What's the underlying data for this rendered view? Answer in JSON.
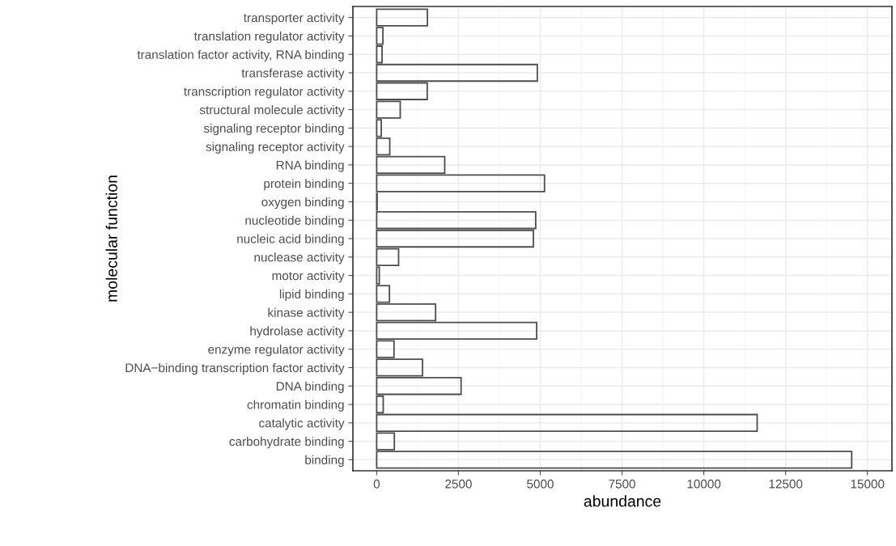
{
  "chart_data": {
    "type": "bar",
    "orientation": "horizontal",
    "xlabel": "abundance",
    "ylabel": "molecular function",
    "categories": [
      "transporter activity",
      "translation regulator activity",
      "translation factor activity, RNA binding",
      "transferase activity",
      "transcription regulator activity",
      "structural molecule activity",
      "signaling receptor binding",
      "signaling receptor activity",
      "RNA binding",
      "protein binding",
      "oxygen binding",
      "nucleotide binding",
      "nucleic acid binding",
      "nuclease activity",
      "motor activity",
      "lipid binding",
      "kinase activity",
      "hydrolase activity",
      "enzyme regulator activity",
      "DNA−binding transcription factor activity",
      "DNA binding",
      "chromatin binding",
      "catalytic activity",
      "carbohydrate binding",
      "binding"
    ],
    "values": [
      1550,
      190,
      165,
      4910,
      1545,
      720,
      140,
      400,
      2080,
      5130,
      15,
      4860,
      4790,
      670,
      80,
      390,
      1800,
      4890,
      530,
      1400,
      2580,
      200,
      11630,
      540,
      14520
    ],
    "color": "#4d4d4d",
    "xlim": [
      -727,
      15750
    ],
    "xticks": [
      0,
      2500,
      5000,
      7500,
      10000,
      12500,
      15000
    ],
    "grid": true
  }
}
